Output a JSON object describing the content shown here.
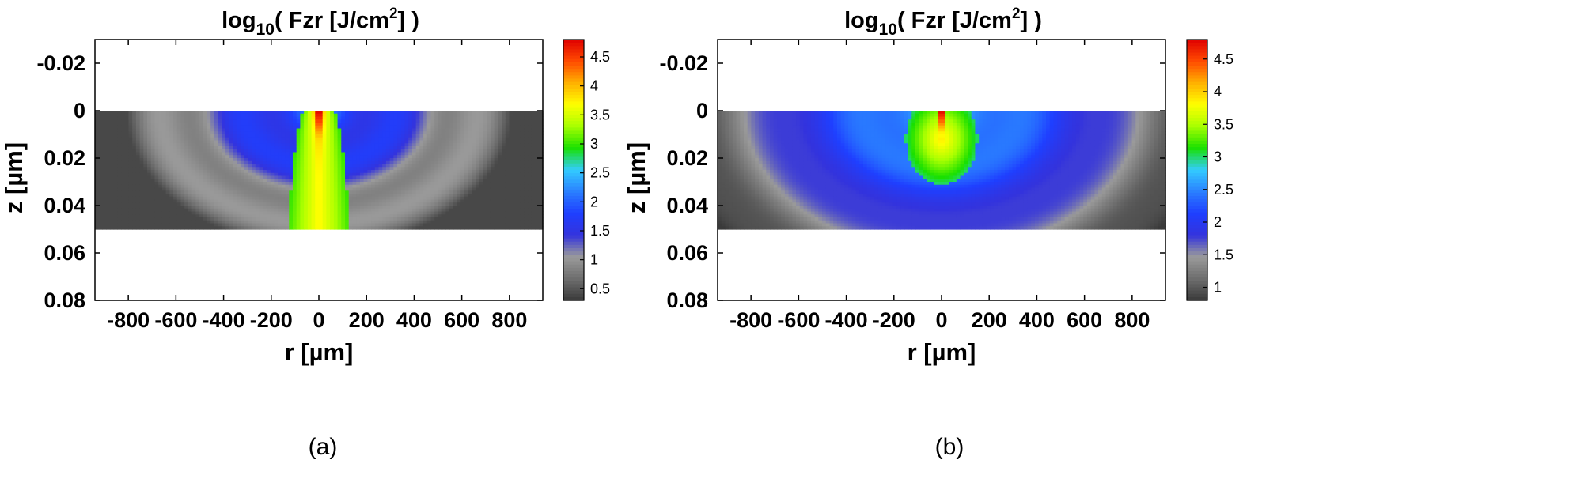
{
  "chart_data": [
    {
      "type": "heatmap",
      "panel_label": "(a)",
      "title": "log10( Fzr [J/cm2] )",
      "title_parts": {
        "prefix": "log",
        "sub": "10",
        "mid": "( Fzr [J/cm",
        "sup": "2",
        "suffix": "] )"
      },
      "xlabel": "r [µm]",
      "ylabel": "z [µm]",
      "xlim": [
        -940,
        940
      ],
      "ylim": [
        -0.03,
        0.08
      ],
      "y_reversed": true,
      "xticks": [
        -800,
        -600,
        -400,
        -200,
        0,
        200,
        400,
        600,
        800
      ],
      "yticks": [
        "-0.02",
        "0",
        "0.02",
        "0.04",
        "0.06",
        "0.08"
      ],
      "ytick_values": [
        -0.02,
        0,
        0.02,
        0.04,
        0.06,
        0.08
      ],
      "slab_z_range": [
        0,
        0.05
      ],
      "colorbar": {
        "ticks": [
          "0.5",
          "1",
          "1.5",
          "2",
          "2.5",
          "3",
          "3.5",
          "4",
          "4.5"
        ],
        "tick_values": [
          0.5,
          1,
          1.5,
          2,
          2.5,
          3,
          3.5,
          4,
          4.5
        ],
        "range": [
          0.3,
          4.8
        ]
      },
      "field_model": {
        "r_center_um": 0,
        "profile": "elongated narrow channel with bands",
        "peak": 4.8,
        "min": 0.4
      }
    },
    {
      "type": "heatmap",
      "panel_label": "(b)",
      "title": "log10( Fzr [J/cm2] )",
      "title_parts": {
        "prefix": "log",
        "sub": "10",
        "mid": "( Fzr [J/cm",
        "sup": "2",
        "suffix": "] )"
      },
      "xlabel": "r [µm]",
      "ylabel": "z [µm]",
      "xlim": [
        -940,
        940
      ],
      "ylim": [
        -0.03,
        0.08
      ],
      "y_reversed": true,
      "xticks": [
        -800,
        -600,
        -400,
        -200,
        0,
        200,
        400,
        600,
        800
      ],
      "yticks": [
        "-0.02",
        "0",
        "0.02",
        "0.04",
        "0.06",
        "0.08"
      ],
      "ytick_values": [
        -0.02,
        0,
        0.02,
        0.04,
        0.06,
        0.08
      ],
      "slab_z_range": [
        0,
        0.05
      ],
      "colorbar": {
        "ticks": [
          "1",
          "1.5",
          "2",
          "2.5",
          "3",
          "3.5",
          "4",
          "4.5"
        ],
        "tick_values": [
          1,
          1.5,
          2,
          2.5,
          3,
          3.5,
          4,
          4.5
        ],
        "range": [
          0.8,
          4.8
        ]
      },
      "field_model": {
        "r_center_um": 0,
        "profile": "round blob with wide radial decay",
        "peak": 4.8,
        "min": 0.8
      }
    }
  ],
  "colormap": [
    "#3a3a3a",
    "#6e6e6e",
    "#9a9a9a",
    "#3333dd",
    "#1f3fff",
    "#2a7fff",
    "#33ccff",
    "#19e000",
    "#a8ff00",
    "#ffff00",
    "#ffb000",
    "#ff4a00",
    "#e00000"
  ]
}
